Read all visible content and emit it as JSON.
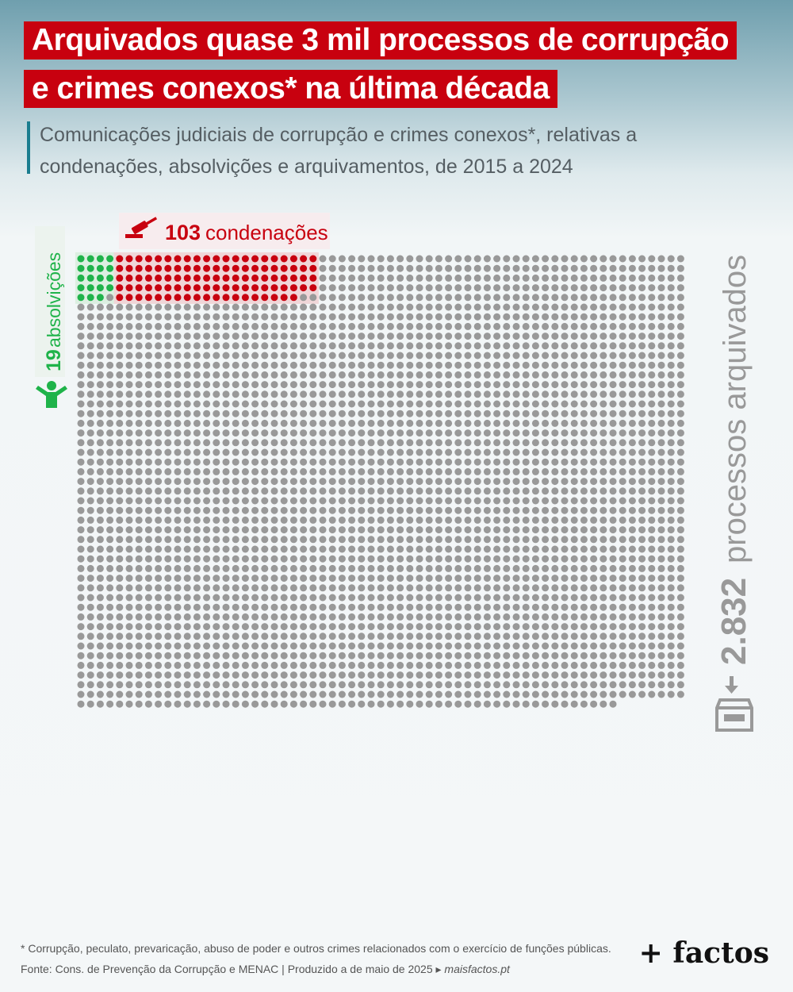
{
  "header": {
    "title_line_1": "Arquivados quase 3 mil processos de corrupção",
    "title_line_2": "e crimes conexos* na última década",
    "subtitle_line_1": "Comunicações judiciais de corrupção e crimes conexos*, relativas a",
    "subtitle_line_2": "condenações, absolvições e arquivamentos, de 2015 a 2024"
  },
  "chart_data": {
    "type": "waffle",
    "total_cases": 2954,
    "categories": [
      {
        "key": "absolvicoes",
        "count_label": "19",
        "label": "absolvições",
        "value": 19,
        "color": "#1fb34a",
        "icon": "person-raised-arms-icon"
      },
      {
        "key": "condenacoes",
        "count_label": "103",
        "label": "condenações",
        "value": 103,
        "color": "#c8010f",
        "icon": "gavel-icon"
      },
      {
        "key": "arquivados",
        "count_label": "2.832",
        "label": "processos arquivados",
        "value": 2832,
        "color": "#999999",
        "icon": "archive-box-icon"
      }
    ]
  },
  "footer": {
    "footnote": "* Corrupção, peculato, prevaricação, abuso de poder e outros crimes relacionados com o exercício de funções públicas.",
    "source": "Fonte: Cons. de Prevenção da Corrupção e MENAC  |  Produzido a  de maio de 2025 ▸ ",
    "site": "maisfactos.pt",
    "brand": "+ factos"
  }
}
